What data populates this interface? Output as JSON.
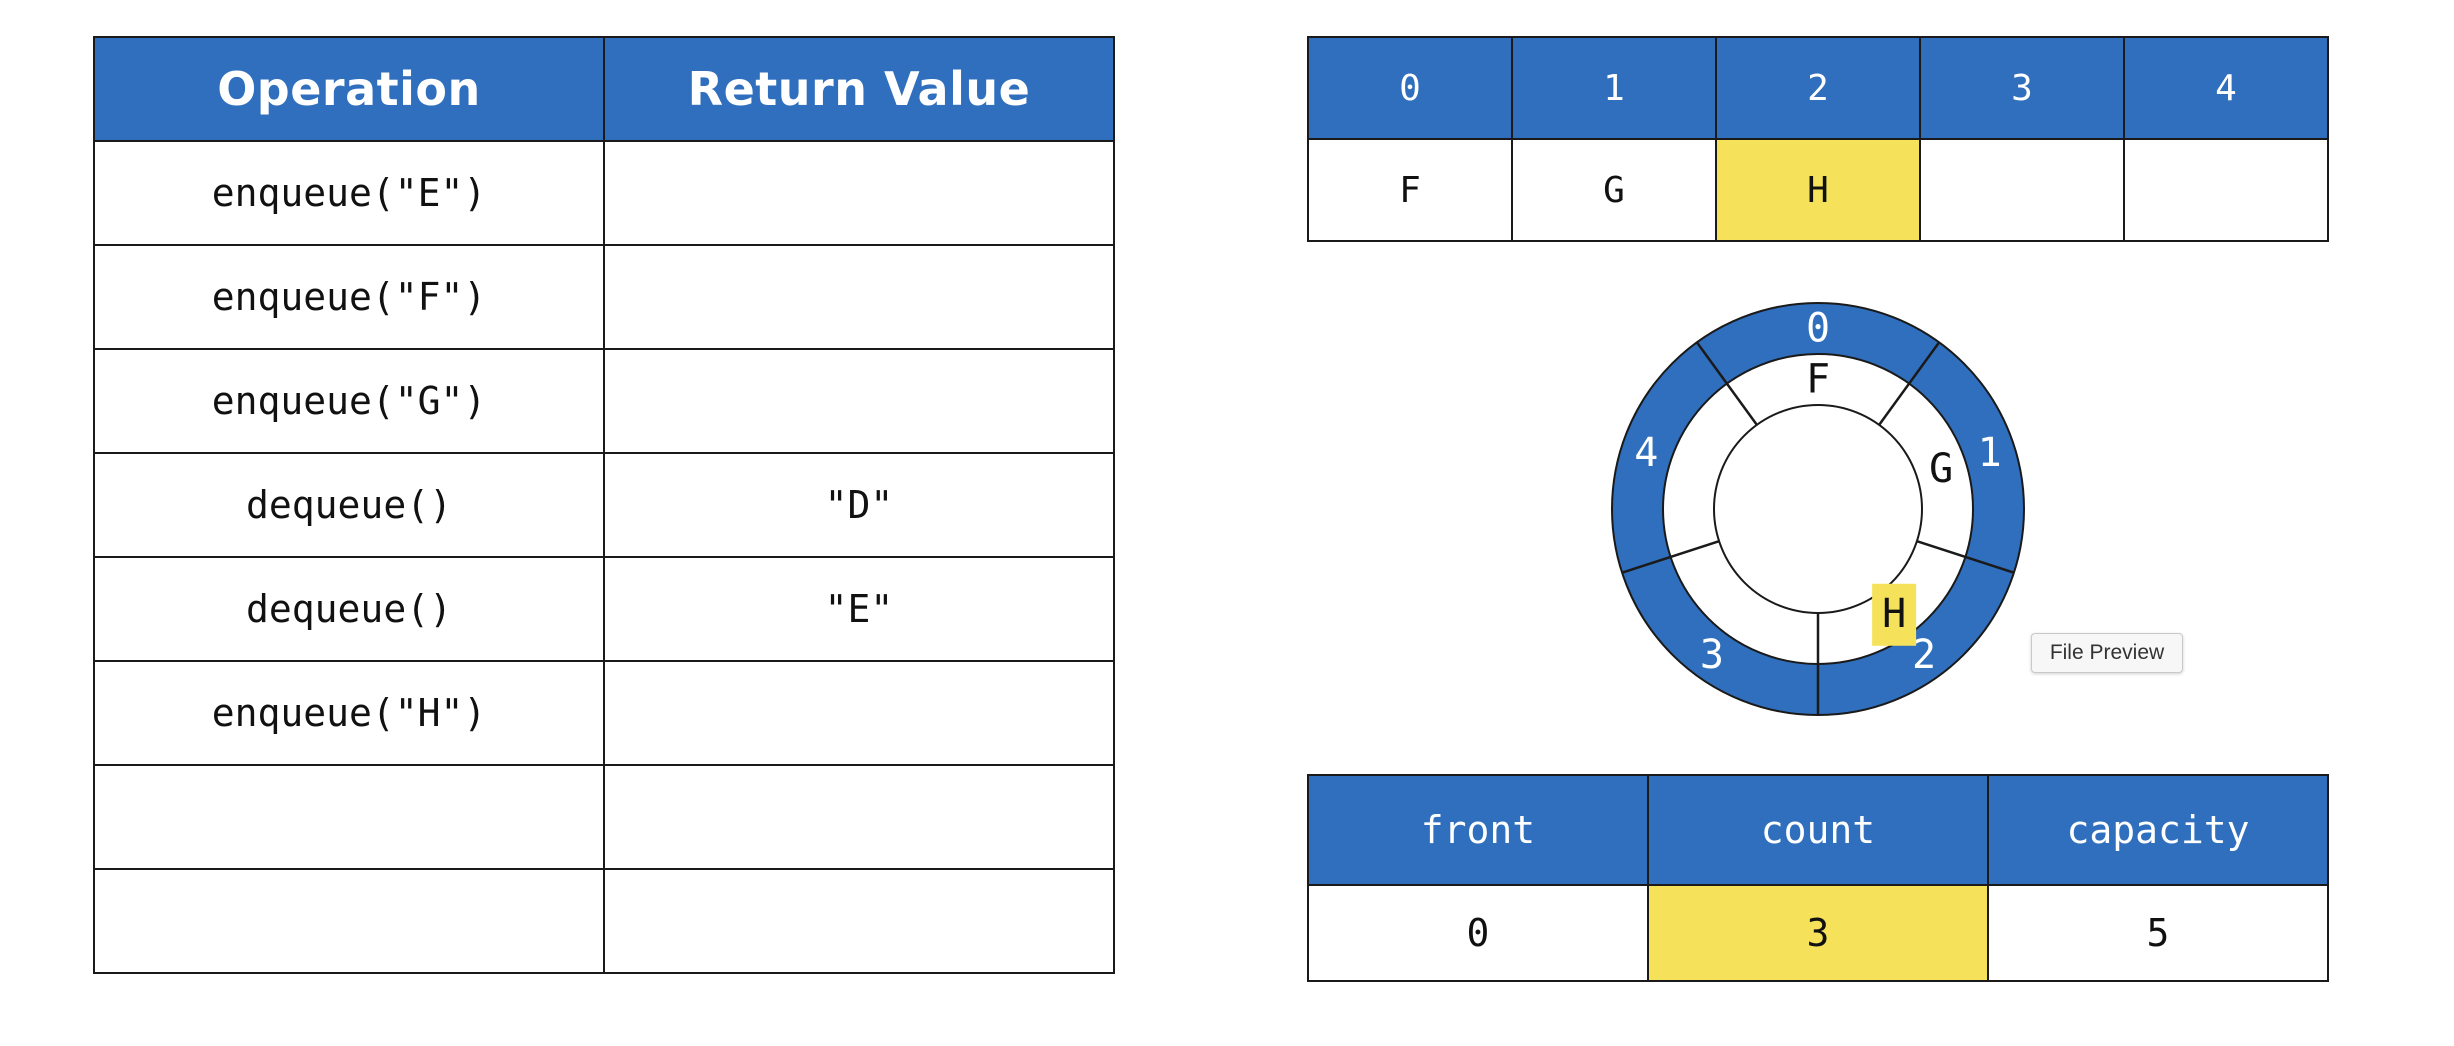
{
  "operations_table": {
    "headers": [
      "Operation",
      "Return Value"
    ],
    "rows": [
      {
        "operation": "enqueue(\"E\")",
        "return_value": ""
      },
      {
        "operation": "enqueue(\"F\")",
        "return_value": ""
      },
      {
        "operation": "enqueue(\"G\")",
        "return_value": ""
      },
      {
        "operation": "dequeue()",
        "return_value": "\"D\""
      },
      {
        "operation": "dequeue()",
        "return_value": "\"E\""
      },
      {
        "operation": "enqueue(\"H\")",
        "return_value": ""
      },
      {
        "operation": "",
        "return_value": ""
      },
      {
        "operation": "",
        "return_value": ""
      }
    ]
  },
  "array": {
    "indices": [
      "0",
      "1",
      "2",
      "3",
      "4"
    ],
    "values": [
      "F",
      "G",
      "H",
      "",
      ""
    ],
    "highlighted_index": 2
  },
  "ring": {
    "slot_labels": [
      "0",
      "1",
      "2",
      "3",
      "4"
    ],
    "values": [
      "F",
      "G",
      "H",
      "",
      ""
    ],
    "highlighted_index": 2
  },
  "tooltip": {
    "text": "File Preview"
  },
  "state_table": {
    "headers": [
      "front",
      "count",
      "capacity"
    ],
    "values": [
      "0",
      "3",
      "5"
    ],
    "highlighted_index": 1
  },
  "colors": {
    "header_blue": "#2f6fbd",
    "highlight_yellow": "#f5e25a",
    "border": "#1a1a1a"
  }
}
